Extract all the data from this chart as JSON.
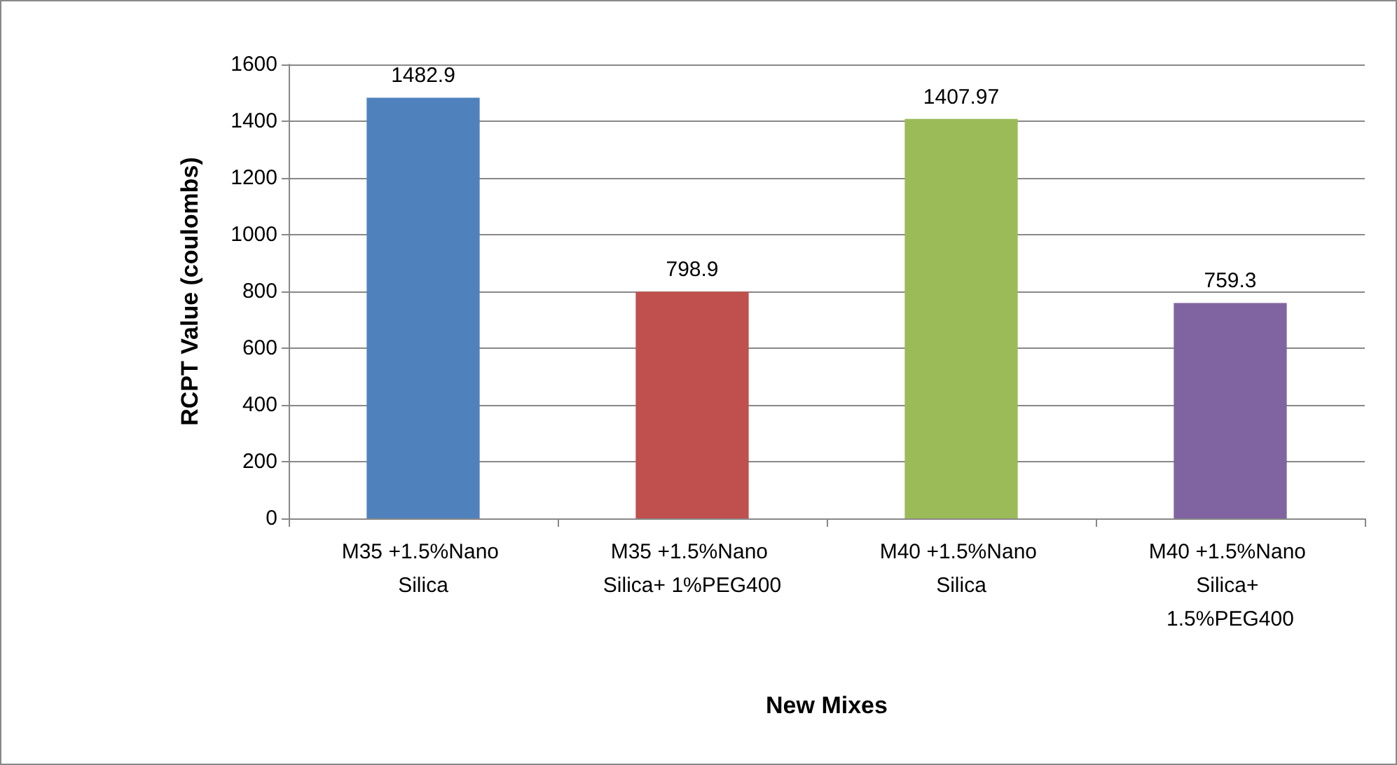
{
  "chart_data": {
    "type": "bar",
    "xlabel": "New Mixes",
    "ylabel": "RCPT Value (coulombs)",
    "categories": [
      "M35 +1.5%Nano Silica",
      "M35 +1.5%Nano Silica+ 1%PEG400",
      "M40 +1.5%Nano Silica",
      "M40 +1.5%Nano Silica+ 1.5%PEG400"
    ],
    "values": [
      1482.9,
      798.9,
      1407.97,
      759.3
    ],
    "colors": [
      "#4f81bd",
      "#c0504d",
      "#9bbb59",
      "#8064a2"
    ],
    "ylim": [
      0,
      1600
    ],
    "yticks": [
      0,
      200,
      400,
      600,
      800,
      1000,
      1200,
      1400,
      1600
    ],
    "grid": "y",
    "data_labels": true
  }
}
